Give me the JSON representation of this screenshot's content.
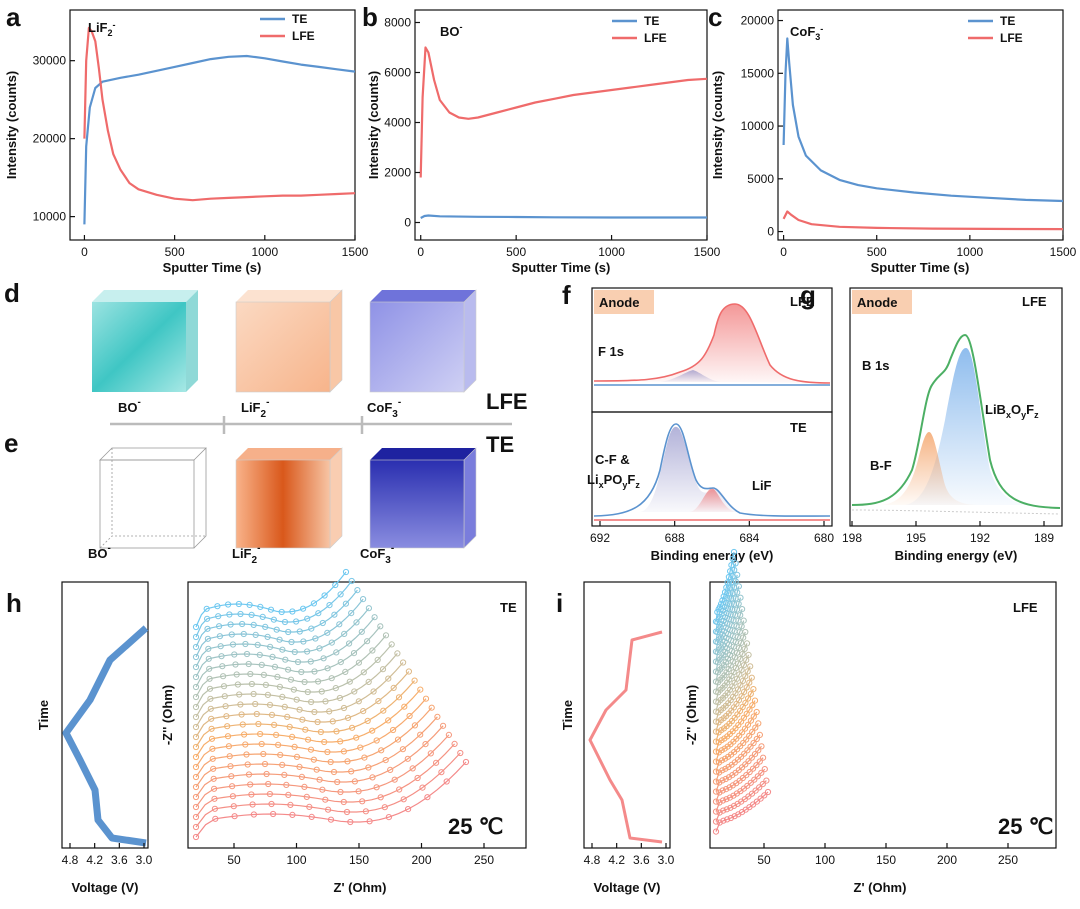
{
  "panel_labels": {
    "a": "a",
    "b": "b",
    "c": "c",
    "d": "d",
    "e": "e",
    "f": "f",
    "g": "g",
    "h": "h",
    "i": "i"
  },
  "colors": {
    "te": "#5b93cf",
    "lfe": "#ef6b6b",
    "bo": "#3fc6c4",
    "lif": "#f07f3c",
    "cof": "#4b4fd0",
    "anode_bg": "#f9cfb1",
    "fit_green": "#4caf64"
  },
  "chart_data": [
    {
      "panel": "a",
      "type": "line",
      "annotation": "LiF2-",
      "xlabel": "Sputter Time (s)",
      "ylabel": "Intensity (counts)",
      "xlim": [
        -80,
        1500
      ],
      "ylim": [
        7000,
        36500
      ],
      "xticks": [
        0,
        500,
        1000,
        1500
      ],
      "yticks": [
        10000,
        20000,
        30000
      ],
      "series": [
        {
          "name": "TE",
          "points": [
            [
              0,
              9000
            ],
            [
              10,
              19000
            ],
            [
              30,
              24000
            ],
            [
              60,
              26500
            ],
            [
              100,
              27300
            ],
            [
              200,
              27800
            ],
            [
              300,
              28200
            ],
            [
              400,
              28700
            ],
            [
              500,
              29200
            ],
            [
              600,
              29700
            ],
            [
              700,
              30200
            ],
            [
              800,
              30500
            ],
            [
              900,
              30600
            ],
            [
              1000,
              30300
            ],
            [
              1100,
              29900
            ],
            [
              1200,
              29500
            ],
            [
              1300,
              29200
            ],
            [
              1400,
              28900
            ],
            [
              1500,
              28600
            ]
          ]
        },
        {
          "name": "LFE",
          "points": [
            [
              0,
              20000
            ],
            [
              10,
              30000
            ],
            [
              25,
              34200
            ],
            [
              40,
              33800
            ],
            [
              60,
              32500
            ],
            [
              80,
              29000
            ],
            [
              100,
              25000
            ],
            [
              130,
              21000
            ],
            [
              160,
              18000
            ],
            [
              200,
              16000
            ],
            [
              250,
              14300
            ],
            [
              300,
              13500
            ],
            [
              400,
              12800
            ],
            [
              500,
              12300
            ],
            [
              600,
              12100
            ],
            [
              700,
              12300
            ],
            [
              800,
              12400
            ],
            [
              900,
              12500
            ],
            [
              1000,
              12600
            ],
            [
              1100,
              12700
            ],
            [
              1200,
              12700
            ],
            [
              1300,
              12800
            ],
            [
              1400,
              12900
            ],
            [
              1500,
              13000
            ]
          ]
        }
      ]
    },
    {
      "panel": "b",
      "type": "line",
      "annotation": "BO-",
      "xlabel": "Sputter Time (s)",
      "ylabel": "Intensity (counts)",
      "xlim": [
        -30,
        1500
      ],
      "ylim": [
        -700,
        8500
      ],
      "xticks": [
        0,
        500,
        1000,
        1500
      ],
      "yticks": [
        0,
        2000,
        4000,
        6000,
        8000
      ],
      "series": [
        {
          "name": "TE",
          "points": [
            [
              0,
              180
            ],
            [
              20,
              260
            ],
            [
              40,
              280
            ],
            [
              100,
              250
            ],
            [
              300,
              230
            ],
            [
              500,
              220
            ],
            [
              700,
              210
            ],
            [
              1000,
              200
            ],
            [
              1300,
              200
            ],
            [
              1500,
              200
            ]
          ]
        },
        {
          "name": "LFE",
          "points": [
            [
              0,
              1800
            ],
            [
              10,
              5000
            ],
            [
              25,
              7000
            ],
            [
              40,
              6800
            ],
            [
              70,
              5700
            ],
            [
              100,
              4900
            ],
            [
              150,
              4400
            ],
            [
              200,
              4200
            ],
            [
              250,
              4150
            ],
            [
              300,
              4200
            ],
            [
              400,
              4400
            ],
            [
              500,
              4600
            ],
            [
              600,
              4800
            ],
            [
              700,
              4950
            ],
            [
              800,
              5100
            ],
            [
              900,
              5200
            ],
            [
              1000,
              5300
            ],
            [
              1100,
              5400
            ],
            [
              1200,
              5500
            ],
            [
              1300,
              5600
            ],
            [
              1400,
              5700
            ],
            [
              1500,
              5750
            ]
          ]
        }
      ]
    },
    {
      "panel": "c",
      "type": "line",
      "annotation": "CoF3-",
      "xlabel": "Sputter Time (s)",
      "ylabel": "Intensity (counts)",
      "xlim": [
        -30,
        1500
      ],
      "ylim": [
        -800,
        21000
      ],
      "xticks": [
        0,
        500,
        1000,
        1500
      ],
      "yticks": [
        0,
        5000,
        10000,
        15000,
        20000
      ],
      "series": [
        {
          "name": "TE",
          "points": [
            [
              0,
              8200
            ],
            [
              10,
              15000
            ],
            [
              20,
              18300
            ],
            [
              30,
              16000
            ],
            [
              50,
              12000
            ],
            [
              80,
              9000
            ],
            [
              120,
              7200
            ],
            [
              200,
              5800
            ],
            [
              300,
              4900
            ],
            [
              400,
              4400
            ],
            [
              500,
              4100
            ],
            [
              700,
              3700
            ],
            [
              900,
              3400
            ],
            [
              1100,
              3200
            ],
            [
              1300,
              3000
            ],
            [
              1500,
              2900
            ]
          ]
        },
        {
          "name": "LFE",
          "points": [
            [
              0,
              1200
            ],
            [
              20,
              1900
            ],
            [
              40,
              1600
            ],
            [
              80,
              1100
            ],
            [
              150,
              700
            ],
            [
              300,
              450
            ],
            [
              500,
              350
            ],
            [
              800,
              280
            ],
            [
              1100,
              250
            ],
            [
              1500,
              230
            ]
          ]
        }
      ]
    }
  ],
  "legend": {
    "te": "TE",
    "lfe": "LFE"
  },
  "tof3d": {
    "labels": [
      "BO-",
      "LiF2-",
      "CoF3-"
    ],
    "row_d": "LFE",
    "row_e": "TE"
  },
  "xps_f": {
    "anode": "Anode",
    "top_tag": "LFE",
    "top_label": "F 1s",
    "bottom_tag": "TE",
    "peak1_line1": "C-F &",
    "peak1_line2": "LixPOyFz",
    "peak2": "LiF",
    "xlabel": "Binding energy (eV)",
    "xticks": [
      "692",
      "688",
      "684",
      "680"
    ]
  },
  "xps_g": {
    "anode": "Anode",
    "tag": "LFE",
    "label": "B 1s",
    "peak1": "LiBxOyFz",
    "peak2": "B-F",
    "xlabel": "Binding energy (eV)",
    "xticks": [
      "198",
      "195",
      "192",
      "189"
    ]
  },
  "eis_h": {
    "tag": "TE",
    "temp": "25 ℃",
    "v_xlabel": "Voltage (V)",
    "v_ylabel": "Time",
    "v_xticks": [
      "4.8",
      "4.2",
      "3.6",
      "3.0"
    ],
    "z_xlabel": "Z' (Ohm)",
    "z_ylabel": "-Z'' (Ohm)",
    "z_xticks": [
      "50",
      "100",
      "150",
      "200",
      "250"
    ]
  },
  "eis_i": {
    "tag": "LFE",
    "temp": "25 ℃",
    "v_xlabel": "Voltage (V)",
    "v_ylabel": "Time",
    "v_xticks": [
      "4.8",
      "4.2",
      "3.6",
      "3.0"
    ],
    "z_xlabel": "Z' (Ohm)",
    "z_ylabel": "-Z'' (Ohm)",
    "z_xticks": [
      "50",
      "100",
      "150",
      "200",
      "250"
    ]
  }
}
